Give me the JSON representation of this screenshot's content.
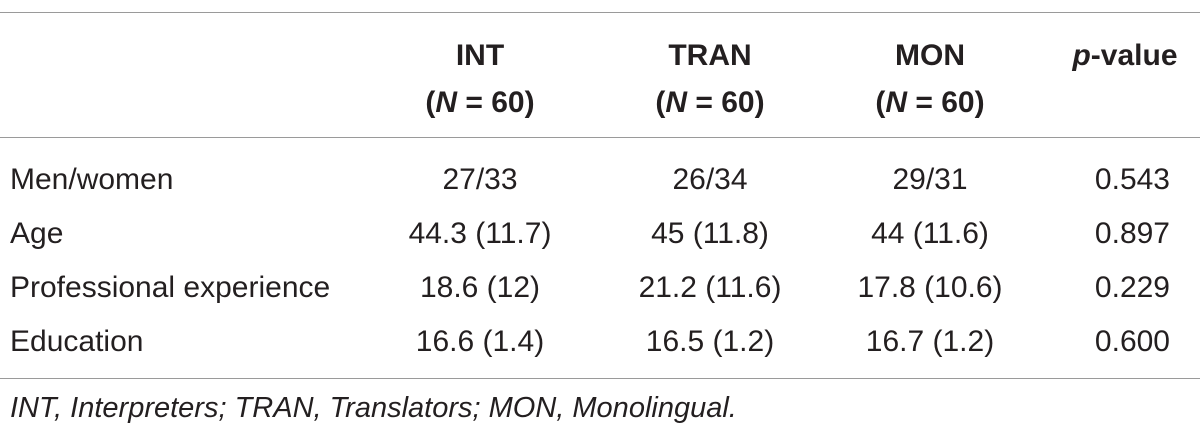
{
  "table": {
    "columns": [
      {
        "label": "",
        "sublabel": ""
      },
      {
        "label": "INT",
        "sublabel_prefix": "(",
        "sublabel_italic": "N",
        "sublabel_suffix": " = 60)"
      },
      {
        "label": "TRAN",
        "sublabel_prefix": "(",
        "sublabel_italic": "N",
        "sublabel_suffix": " = 60)"
      },
      {
        "label": "MON",
        "sublabel_prefix": "(",
        "sublabel_italic": "N",
        "sublabel_suffix": " = 60)"
      },
      {
        "label_italic": "p",
        "label_suffix": "-value"
      }
    ],
    "rows": [
      {
        "label": "Men/women",
        "int": "27/33",
        "tran": "26/34",
        "mon": "29/31",
        "p": "0.543"
      },
      {
        "label": "Age",
        "int": "44.3 (11.7)",
        "tran": "45 (11.8)",
        "mon": "44 (11.6)",
        "p": "0.897"
      },
      {
        "label": "Professional experience",
        "int": "18.6 (12)",
        "tran": "21.2 (11.6)",
        "mon": "17.8 (10.6)",
        "p": "0.229"
      },
      {
        "label": "Education",
        "int": "16.6 (1.4)",
        "tran": "16.5 (1.2)",
        "mon": "16.7 (1.2)",
        "p": "0.600"
      }
    ]
  },
  "footnote": "INT, Interpreters; TRAN, Translators; MON, Monolingual."
}
